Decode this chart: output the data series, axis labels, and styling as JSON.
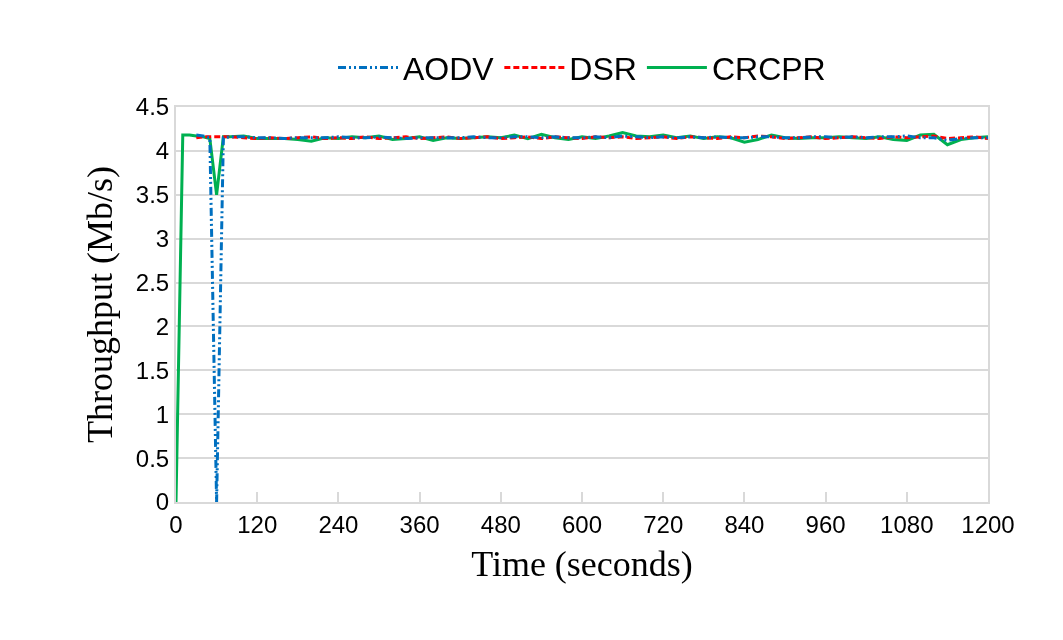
{
  "chart_data": {
    "type": "line",
    "xlabel": "Time (seconds)",
    "ylabel": "Throughput (Mb/s)",
    "x": [
      0,
      10,
      20,
      30,
      40,
      50,
      60,
      70,
      80,
      100,
      120,
      140,
      160,
      180,
      200,
      220,
      240,
      260,
      280,
      300,
      320,
      340,
      360,
      380,
      400,
      420,
      440,
      460,
      480,
      500,
      520,
      540,
      560,
      580,
      600,
      620,
      640,
      660,
      680,
      700,
      720,
      740,
      760,
      780,
      800,
      820,
      840,
      860,
      880,
      900,
      920,
      940,
      960,
      980,
      1000,
      1020,
      1040,
      1060,
      1080,
      1100,
      1120,
      1140,
      1160,
      1180,
      1200
    ],
    "series": [
      {
        "name": "AODV",
        "color": "#0070c0",
        "line_style": "dashdot",
        "values": [
          null,
          null,
          null,
          4.18,
          4.17,
          4.15,
          0,
          4.15,
          4.16,
          4.16,
          4.15,
          4.15,
          4.14,
          4.15,
          4.15,
          4.15,
          4.16,
          4.15,
          4.15,
          4.16,
          4.15,
          4.14,
          4.15,
          4.15,
          4.15,
          4.15,
          4.16,
          4.15,
          4.15,
          4.16,
          4.16,
          4.15,
          4.16,
          4.15,
          4.15,
          4.16,
          4.15,
          4.17,
          4.16,
          4.15,
          4.16,
          4.15,
          4.16,
          4.15,
          4.16,
          4.15,
          4.15,
          4.16,
          4.16,
          4.15,
          4.15,
          4.16,
          4.16,
          4.15,
          4.16,
          4.15,
          4.16,
          4.16,
          4.17,
          4.15,
          4.15,
          4.12,
          4.14,
          4.15,
          4.15
        ]
      },
      {
        "name": "DSR",
        "color": "#ff0000",
        "line_style": "dashed",
        "values": [
          null,
          null,
          null,
          4.15,
          4.16,
          4.16,
          4.16,
          4.16,
          4.16,
          4.15,
          4.14,
          4.15,
          4.14,
          4.15,
          4.16,
          4.14,
          4.15,
          4.14,
          4.16,
          4.14,
          4.15,
          4.16,
          4.14,
          4.15,
          4.16,
          4.14,
          4.15,
          4.16,
          4.14,
          4.15,
          4.16,
          4.14,
          4.16,
          4.15,
          4.14,
          4.16,
          4.15,
          4.16,
          4.14,
          4.15,
          4.16,
          4.14,
          4.16,
          4.15,
          4.14,
          4.16,
          4.15,
          4.17,
          4.16,
          4.14,
          4.15,
          4.16,
          4.14,
          4.15,
          4.16,
          4.15,
          4.14,
          4.16,
          4.15,
          4.16,
          4.17,
          4.14,
          4.15,
          4.16,
          4.14
        ]
      },
      {
        "name": "CRCPR",
        "color": "#00b050",
        "line_style": "solid",
        "values": [
          0,
          4.18,
          4.18,
          4.17,
          4.16,
          4.14,
          3.5,
          4.16,
          4.16,
          4.17,
          4.14,
          4.14,
          4.14,
          4.13,
          4.11,
          4.15,
          4.14,
          4.16,
          4.15,
          4.17,
          4.13,
          4.14,
          4.16,
          4.12,
          4.15,
          4.14,
          4.15,
          4.16,
          4.15,
          4.18,
          4.14,
          4.19,
          4.15,
          4.13,
          4.16,
          4.14,
          4.17,
          4.21,
          4.17,
          4.16,
          4.18,
          4.15,
          4.17,
          4.14,
          4.16,
          4.15,
          4.1,
          4.13,
          4.18,
          4.15,
          4.14,
          4.15,
          4.15,
          4.16,
          4.15,
          4.14,
          4.16,
          4.13,
          4.12,
          4.18,
          4.19,
          4.07,
          4.13,
          4.15,
          4.16
        ]
      }
    ],
    "xlim": [
      0,
      1200
    ],
    "xticks": [
      0,
      120,
      240,
      360,
      480,
      600,
      720,
      840,
      960,
      1080,
      1200
    ],
    "ylim": [
      0,
      4.5
    ],
    "yticks": [
      0,
      {
        "value": 0.5,
        "label": "0.5"
      },
      1,
      {
        "value": 1.5,
        "label": "1.5"
      },
      2,
      {
        "value": 2.5,
        "label": "2.5"
      },
      3,
      {
        "value": 3.5,
        "label": "3.5"
      },
      4,
      {
        "value": 4.5,
        "label": "4.5"
      }
    ],
    "grid": "y",
    "legend": "top",
    "marker": "none"
  }
}
